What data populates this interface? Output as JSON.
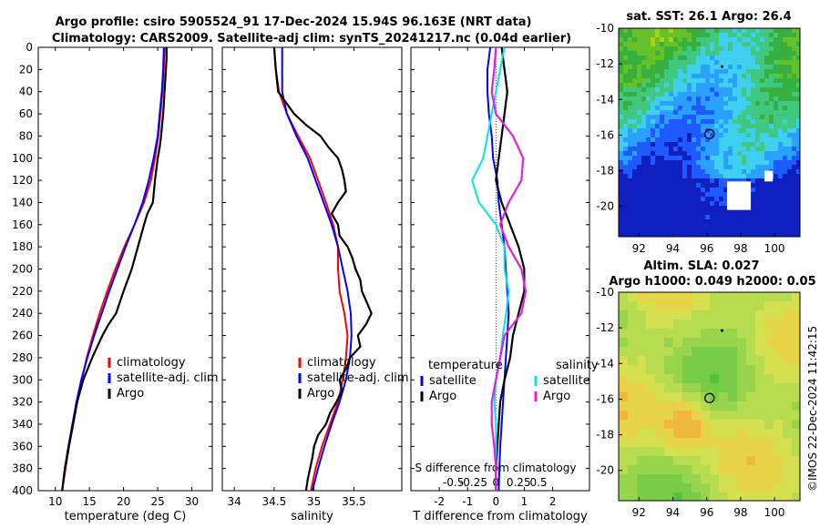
{
  "colors": {
    "climatology": "#ff0000",
    "satellite": "#0000ff",
    "argo": "#000000",
    "sal_satellite": "#00e5ee",
    "sal_argo": "#e020e0"
  },
  "header": {
    "title1": "Argo profile: csiro 5905524_91 17-Dec-2024 15.94S 96.163E (NRT data)",
    "title2": "Climatology: CARS2009. Satellite-adj clim: synTS_20241217.nc (0.04d earlier)"
  },
  "footer": {
    "credit": "©IMOS 22-Dec-2024 11:42:15"
  },
  "maps": {
    "sst": {
      "title": "sat. SST: 26.1 Argo: 26.4"
    },
    "sla": {
      "title1": "Altim. SLA: 0.027",
      "title2": "Argo h1000: 0.049 h2000: 0.05"
    },
    "x_ticks": [
      92,
      94,
      96,
      98,
      100
    ],
    "y_ticks": [
      -10,
      -12,
      -14,
      -16,
      -18,
      -20
    ],
    "xlim": [
      90.8,
      101.5
    ],
    "ylim": [
      -21.7,
      -10
    ],
    "argo_marker": [
      96.163,
      -15.94
    ],
    "dot_marker": [
      96.9,
      -12.15
    ]
  },
  "chart_data": [
    {
      "type": "line",
      "name": "temperature",
      "xlabel": "temperature (deg C)",
      "ylabel": "",
      "xlim": [
        7.5,
        33
      ],
      "ylim": [
        0,
        400
      ],
      "x_ticks": [
        10,
        15,
        20,
        25,
        30
      ],
      "y_ticks": [
        0,
        20,
        40,
        60,
        80,
        100,
        120,
        140,
        160,
        180,
        200,
        220,
        240,
        260,
        280,
        300,
        320,
        340,
        360,
        380,
        400
      ],
      "legend": [
        "climatology",
        "satellite-adj. clim",
        "Argo"
      ],
      "series": [
        {
          "name": "climatology",
          "depth": [
            0,
            20,
            40,
            60,
            80,
            100,
            120,
            140,
            160,
            180,
            200,
            220,
            240,
            260,
            280,
            300,
            320,
            340,
            360,
            380,
            400
          ],
          "values": [
            26.0,
            25.9,
            25.7,
            25.4,
            25.1,
            24.6,
            24.0,
            23.0,
            21.6,
            20.1,
            18.8,
            17.6,
            16.5,
            15.5,
            14.6,
            13.9,
            13.2,
            12.6,
            12.0,
            11.5,
            11.0
          ]
        },
        {
          "name": "satellite-adj. clim",
          "depth": [
            0,
            20,
            40,
            60,
            80,
            100,
            120,
            140,
            160,
            180,
            200,
            220,
            240,
            260,
            280,
            300,
            320,
            340,
            360,
            380,
            400
          ],
          "values": [
            25.9,
            25.8,
            25.6,
            25.3,
            25.0,
            24.4,
            23.7,
            22.8,
            21.6,
            20.3,
            19.1,
            17.9,
            16.8,
            15.7,
            14.7,
            13.8,
            13.1,
            12.5,
            11.9,
            11.4,
            11.0
          ]
        },
        {
          "name": "Argo",
          "depth": [
            0,
            10,
            20,
            40,
            60,
            80,
            90,
            100,
            120,
            140,
            150,
            160,
            180,
            200,
            220,
            240,
            250,
            260,
            280,
            300,
            320,
            340,
            360,
            380,
            400
          ],
          "values": [
            26.3,
            26.3,
            26.2,
            26.0,
            25.8,
            25.5,
            25.3,
            25.0,
            24.6,
            24.3,
            23.5,
            23.0,
            22.1,
            21.2,
            20.0,
            18.9,
            17.8,
            16.9,
            15.4,
            14.1,
            13.2,
            12.6,
            12.0,
            11.4,
            11.0
          ]
        }
      ]
    },
    {
      "type": "line",
      "name": "salinity",
      "xlabel": "salinity",
      "ylabel": "",
      "xlim": [
        33.85,
        36.1
      ],
      "ylim": [
        0,
        400
      ],
      "x_ticks": [
        34,
        34.5,
        35,
        35.5
      ],
      "legend": [
        "climatology",
        "satellite-adj. clim",
        "Argo"
      ],
      "series": [
        {
          "name": "climatology",
          "depth": [
            0,
            20,
            40,
            60,
            80,
            100,
            120,
            140,
            160,
            180,
            200,
            220,
            240,
            260,
            280,
            300,
            320,
            340,
            360,
            380,
            400
          ],
          "values": [
            34.5,
            34.52,
            34.56,
            34.66,
            34.8,
            34.95,
            35.05,
            35.15,
            35.24,
            35.3,
            35.3,
            35.32,
            35.38,
            35.42,
            35.4,
            35.36,
            35.3,
            35.2,
            35.1,
            35.02,
            34.96
          ]
        },
        {
          "name": "satellite-adj. clim",
          "depth": [
            0,
            20,
            40,
            60,
            80,
            100,
            120,
            140,
            160,
            180,
            200,
            220,
            240,
            260,
            280,
            300,
            320,
            340,
            360,
            380,
            400
          ],
          "values": [
            34.6,
            34.6,
            34.6,
            34.66,
            34.78,
            34.92,
            35.02,
            35.12,
            35.22,
            35.3,
            35.36,
            35.42,
            35.46,
            35.47,
            35.45,
            35.4,
            35.32,
            35.22,
            35.13,
            35.05,
            34.98
          ]
        },
        {
          "name": "Argo",
          "depth": [
            0,
            20,
            40,
            60,
            70,
            80,
            90,
            100,
            110,
            120,
            130,
            140,
            150,
            160,
            170,
            180,
            190,
            200,
            210,
            220,
            230,
            240,
            250,
            260,
            270,
            280,
            290,
            300,
            310,
            320,
            330,
            340,
            350,
            360,
            370,
            380,
            390,
            400
          ],
          "values": [
            34.5,
            34.52,
            34.55,
            34.75,
            34.9,
            35.08,
            35.18,
            35.3,
            35.35,
            35.38,
            35.4,
            35.3,
            35.22,
            35.3,
            35.32,
            35.42,
            35.48,
            35.52,
            35.58,
            35.6,
            35.66,
            35.72,
            35.65,
            35.55,
            35.58,
            35.45,
            35.4,
            35.32,
            35.35,
            35.28,
            35.2,
            35.15,
            35.05,
            35.0,
            34.98,
            34.95,
            34.92,
            34.9
          ]
        }
      ]
    },
    {
      "type": "line",
      "name": "difference",
      "xlabel": "T difference from climatology",
      "top_label": "S difference from climatology",
      "xlim": [
        -3,
        3.3
      ],
      "ylim": [
        0,
        400
      ],
      "x_ticks": [
        -2,
        -1,
        0,
        1,
        2
      ],
      "top_ticks": [
        "-0.5",
        "-0.25",
        "0",
        "0.25",
        "0.5"
      ],
      "legend_left_title": "temperature",
      "legend_right_title": "salinity",
      "legend_left": [
        "satellite",
        "Argo"
      ],
      "legend_right": [
        "satellite",
        "Argo"
      ],
      "series": [
        {
          "name": "T satellite",
          "depth": [
            0,
            20,
            40,
            60,
            80,
            100,
            120,
            140,
            160,
            180,
            200,
            220,
            240,
            260,
            280,
            300,
            320,
            340,
            360,
            380,
            400
          ],
          "values": [
            -0.2,
            -0.3,
            -0.3,
            -0.25,
            -0.15,
            -0.1,
            0.05,
            0.1,
            0.2,
            0.3,
            0.35,
            0.4,
            0.45,
            0.4,
            0.35,
            0.3,
            0.25,
            0.2,
            0.15,
            0.12,
            0.1
          ]
        },
        {
          "name": "T Argo",
          "depth": [
            0,
            20,
            40,
            60,
            80,
            100,
            120,
            140,
            160,
            180,
            200,
            220,
            240,
            260,
            280,
            300,
            320,
            340,
            360,
            380,
            400
          ],
          "values": [
            0.2,
            0.3,
            0.4,
            0.3,
            0.2,
            0.1,
            0.0,
            0.2,
            0.5,
            0.8,
            1.0,
            1.0,
            0.8,
            0.6,
            0.5,
            0.3,
            0.15,
            0.1,
            0.05,
            0.0,
            0.0
          ]
        },
        {
          "name": "S satellite",
          "depth": [
            0,
            20,
            40,
            60,
            80,
            100,
            120,
            140,
            160,
            180,
            200,
            220,
            240,
            260,
            280,
            300,
            320,
            340,
            360,
            380,
            400
          ],
          "values": [
            0.1,
            0.05,
            0.0,
            -0.05,
            -0.1,
            -0.15,
            -0.28,
            -0.2,
            0.0,
            0.1,
            0.1,
            0.15,
            0.12,
            0.08,
            0.05,
            0.0,
            -0.02,
            0.0,
            0.0,
            0.0,
            0.0
          ]
        },
        {
          "name": "S Argo",
          "depth": [
            0,
            20,
            40,
            60,
            80,
            100,
            120,
            140,
            160,
            180,
            200,
            220,
            240,
            260,
            280,
            300,
            320,
            340,
            360,
            380,
            400
          ],
          "values": [
            0.0,
            -0.02,
            -0.05,
            0.0,
            0.2,
            0.32,
            0.3,
            0.15,
            0.05,
            0.15,
            0.3,
            0.35,
            0.3,
            0.1,
            0.05,
            0.0,
            -0.05,
            -0.05,
            -0.02,
            0.0,
            0.0
          ]
        }
      ]
    }
  ]
}
